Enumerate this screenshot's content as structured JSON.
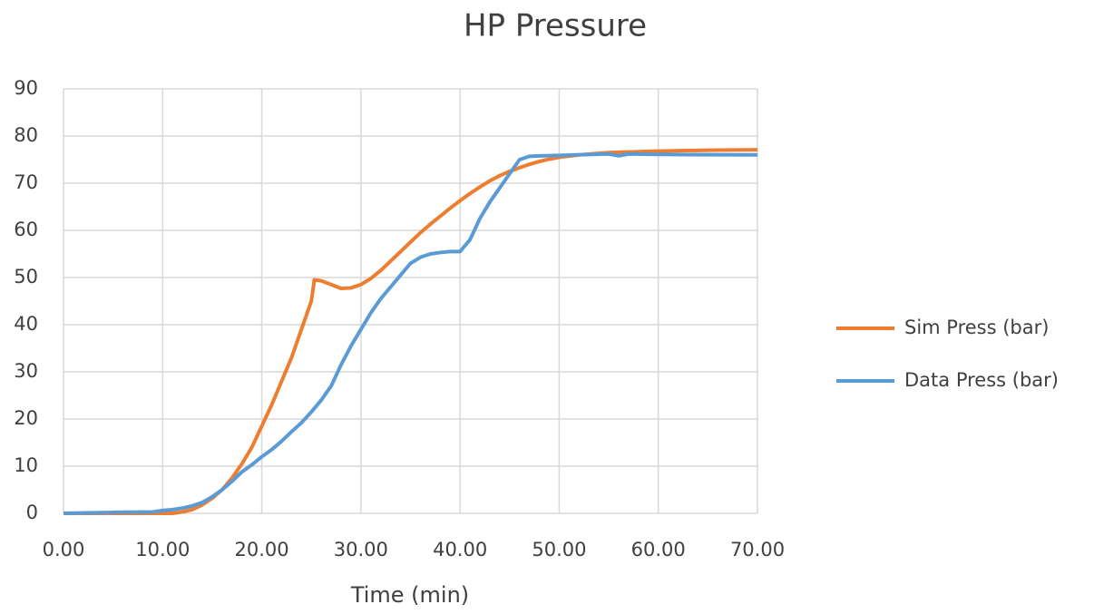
{
  "chart_data": {
    "type": "line",
    "title": "HP Pressure",
    "x_label": "Time (min)",
    "xlim": [
      0,
      70
    ],
    "ylim": [
      0,
      90
    ],
    "xticks": [
      {
        "value": 0,
        "label": "0.00"
      },
      {
        "value": 10,
        "label": "10.00"
      },
      {
        "value": 20,
        "label": "20.00"
      },
      {
        "value": 30,
        "label": "30.00"
      },
      {
        "value": 40,
        "label": "40.00"
      },
      {
        "value": 50,
        "label": "50.00"
      },
      {
        "value": 60,
        "label": "60.00"
      },
      {
        "value": 70,
        "label": "70.00"
      }
    ],
    "yticks": [
      0,
      10,
      20,
      30,
      40,
      50,
      60,
      70,
      80,
      90
    ],
    "grid": true,
    "legend": "right",
    "series": [
      {
        "name": "Sim Press (bar)",
        "color": "#ed7d31",
        "x": [
          0,
          11,
          12,
          13,
          14,
          15,
          16,
          17,
          18,
          19,
          20,
          21,
          22,
          23,
          24,
          25,
          25.3,
          26,
          27,
          28,
          29,
          30,
          31,
          32,
          33,
          34,
          35,
          36,
          37,
          38,
          39,
          40,
          41,
          42,
          43,
          44,
          45,
          46,
          47,
          48,
          49,
          50,
          52,
          55,
          60,
          65,
          70
        ],
        "values": [
          0,
          0,
          0.3,
          0.8,
          1.8,
          3.2,
          5,
          7.5,
          10.5,
          14,
          18.5,
          23,
          28,
          33,
          39,
          45,
          49.5,
          49.3,
          48.5,
          47.7,
          47.8,
          48.5,
          49.8,
          51.5,
          53.5,
          55.5,
          57.5,
          59.5,
          61.3,
          63,
          64.7,
          66.3,
          67.8,
          69.2,
          70.5,
          71.6,
          72.5,
          73.3,
          74,
          74.6,
          75.1,
          75.5,
          76,
          76.5,
          76.8,
          77,
          77.1
        ]
      },
      {
        "name": "Data Press (bar)",
        "color": "#5b9bd5",
        "x": [
          0,
          5,
          9,
          10,
          11,
          12,
          13,
          14,
          15,
          16,
          17,
          18,
          19,
          20,
          21,
          22,
          23,
          24,
          25,
          26,
          27,
          28,
          29,
          30,
          31,
          32,
          33,
          34,
          35,
          36,
          37,
          38,
          39,
          40,
          41,
          42,
          43,
          44,
          45,
          46,
          47,
          48,
          50,
          55,
          56,
          57,
          60,
          70
        ],
        "values": [
          0,
          0.2,
          0.3,
          0.6,
          0.8,
          1.1,
          1.6,
          2.3,
          3.5,
          5,
          6.8,
          8.8,
          10.3,
          12,
          13.5,
          15.3,
          17.3,
          19.2,
          21.5,
          24,
          27,
          31.5,
          35.5,
          39,
          42.5,
          45.5,
          48,
          50.5,
          53,
          54.3,
          55,
          55.3,
          55.5,
          55.5,
          58,
          62.5,
          66,
          69,
          72,
          75,
          75.7,
          75.8,
          75.9,
          76.2,
          75.8,
          76.2,
          76.1,
          76
        ]
      }
    ]
  }
}
